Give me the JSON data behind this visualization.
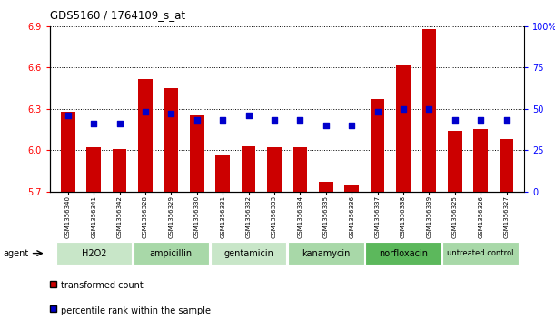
{
  "title": "GDS5160 / 1764109_s_at",
  "samples": [
    "GSM1356340",
    "GSM1356341",
    "GSM1356342",
    "GSM1356328",
    "GSM1356329",
    "GSM1356330",
    "GSM1356331",
    "GSM1356332",
    "GSM1356333",
    "GSM1356334",
    "GSM1356335",
    "GSM1356336",
    "GSM1356337",
    "GSM1356338",
    "GSM1356339",
    "GSM1356325",
    "GSM1356326",
    "GSM1356327"
  ],
  "transformed_count": [
    6.28,
    6.02,
    6.01,
    6.52,
    6.45,
    6.25,
    5.97,
    6.03,
    6.02,
    6.02,
    5.77,
    5.74,
    6.37,
    6.62,
    6.88,
    6.14,
    6.15,
    6.08
  ],
  "percentile_rank": [
    46,
    41,
    41,
    48,
    47,
    43,
    43,
    46,
    43,
    43,
    40,
    40,
    48,
    50,
    50,
    43,
    43,
    43
  ],
  "groups": [
    {
      "label": "H2O2",
      "start": 0,
      "end": 3,
      "color": "#c8e6c8"
    },
    {
      "label": "ampicillin",
      "start": 3,
      "end": 6,
      "color": "#a8d8a8"
    },
    {
      "label": "gentamicin",
      "start": 6,
      "end": 9,
      "color": "#c8e6c8"
    },
    {
      "label": "kanamycin",
      "start": 9,
      "end": 12,
      "color": "#a8d8a8"
    },
    {
      "label": "norfloxacin",
      "start": 12,
      "end": 15,
      "color": "#5cb85c"
    },
    {
      "label": "untreated control",
      "start": 15,
      "end": 18,
      "color": "#a8d8a8"
    }
  ],
  "ylim_left": [
    5.7,
    6.9
  ],
  "ylim_right": [
    0,
    100
  ],
  "yticks_left": [
    5.7,
    6.0,
    6.3,
    6.6,
    6.9
  ],
  "yticks_right": [
    0,
    25,
    50,
    75,
    100
  ],
  "bar_color": "#cc0000",
  "dot_color": "#0000cc",
  "bar_width": 0.55,
  "background_color": "#ffffff",
  "plot_bg_color": "#ffffff",
  "legend_bar_label": "transformed count",
  "legend_dot_label": "percentile rank within the sample",
  "baseline": 5.7
}
